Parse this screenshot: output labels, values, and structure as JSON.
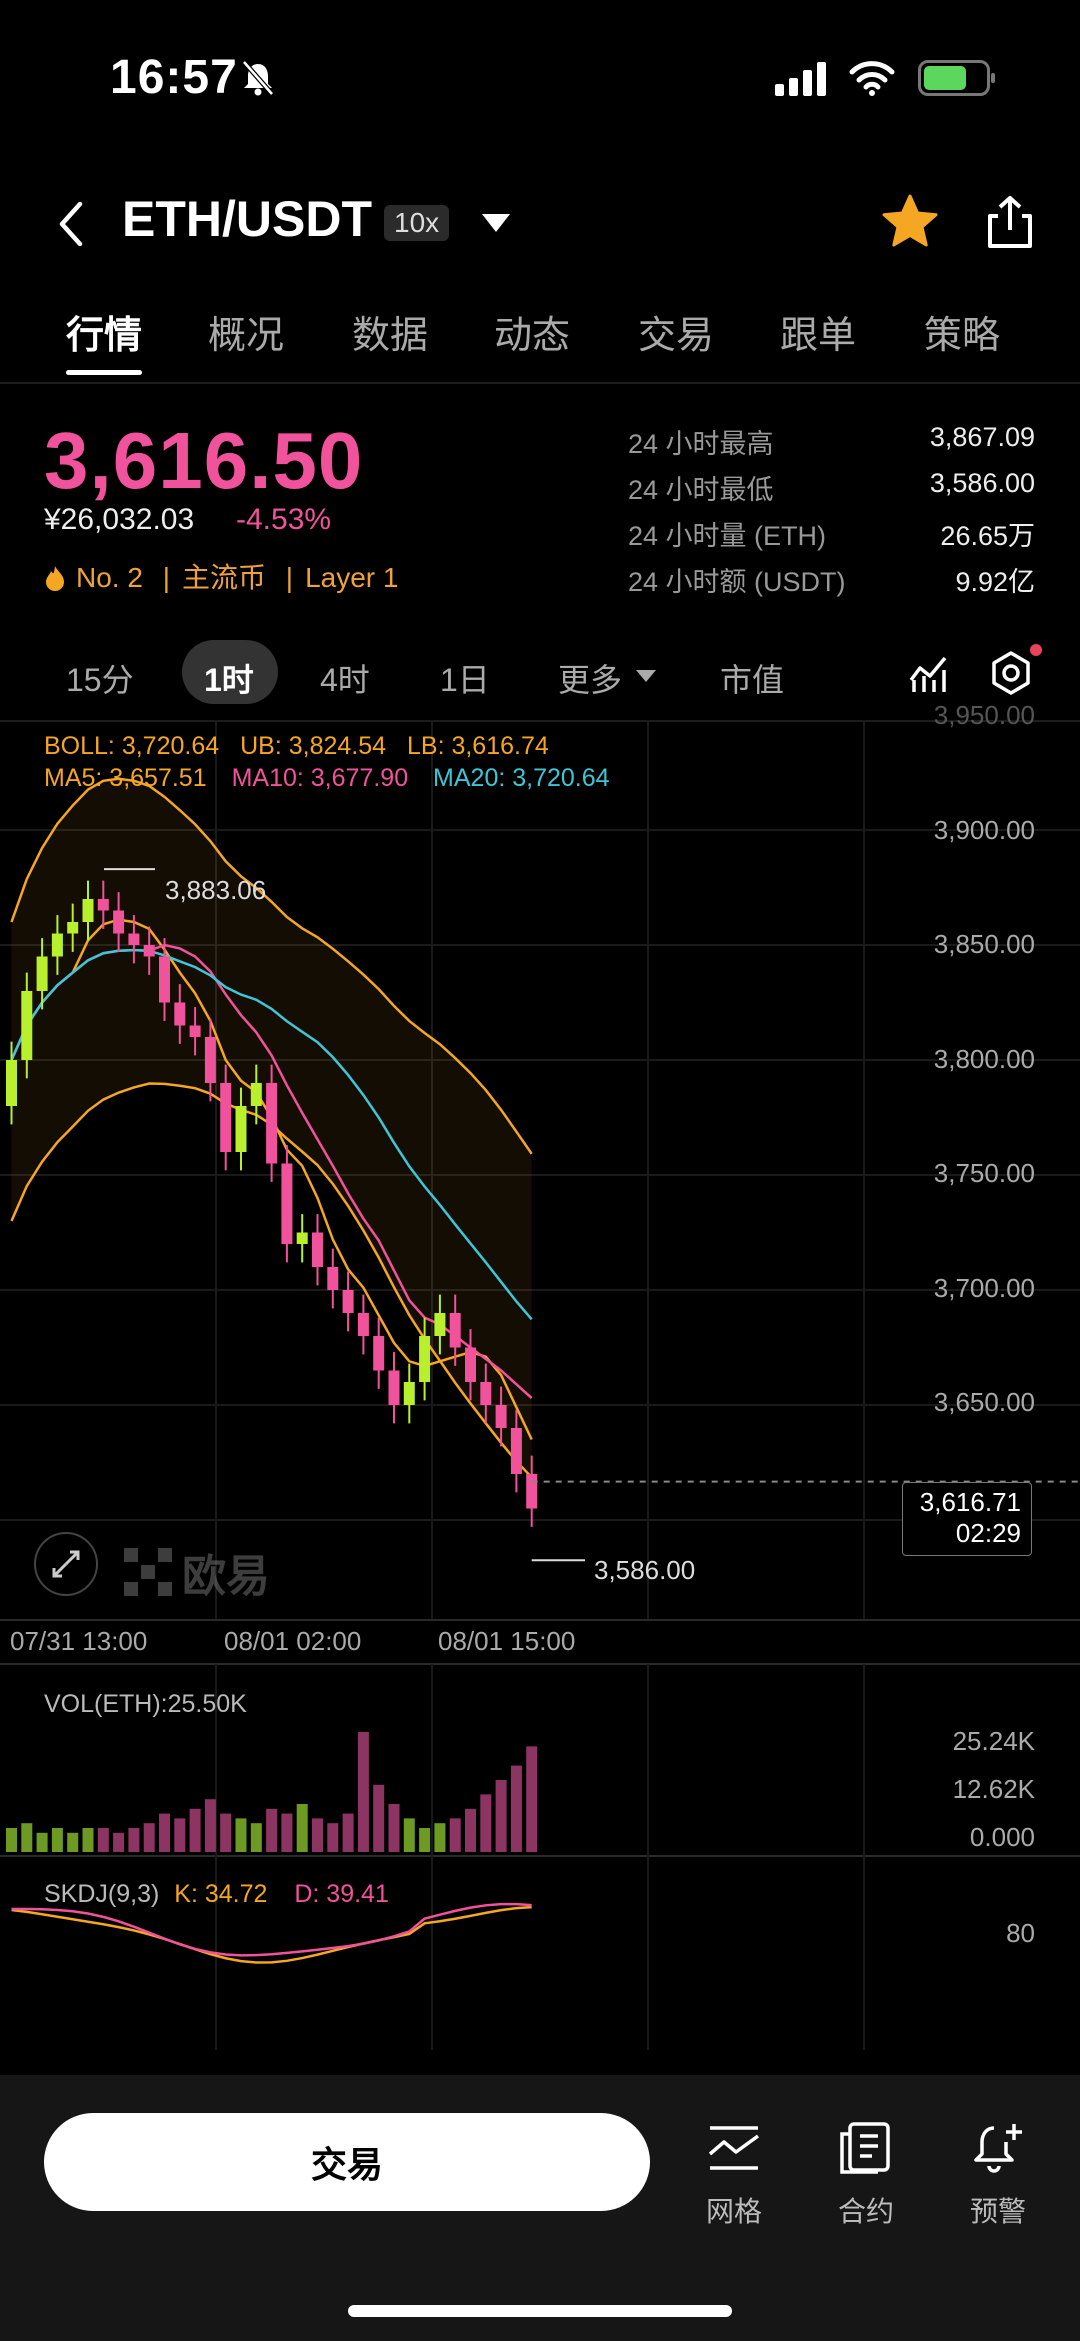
{
  "status": {
    "time": "16:57"
  },
  "header": {
    "pair": "ETH/USDT",
    "leverage": "10x"
  },
  "tabs": [
    "行情",
    "概况",
    "数据",
    "动态",
    "交易",
    "跟单",
    "策略"
  ],
  "price": {
    "last": "3,616.50",
    "cny": "¥26,032.03",
    "change": "-4.53%",
    "rank": "No. 2",
    "tag1": "主流币",
    "tag2": "Layer 1"
  },
  "stats": [
    {
      "label": "24 小时最高",
      "value": "3,867.09"
    },
    {
      "label": "24 小时最低",
      "value": "3,586.00"
    },
    {
      "label": "24 小时量 (ETH)",
      "value": "26.65万"
    },
    {
      "label": "24 小时额 (USDT)",
      "value": "9.92亿"
    }
  ],
  "intervals": {
    "i15": "15分",
    "i1h": "1时",
    "i4h": "4时",
    "i1d": "1日",
    "more": "更多",
    "mcap": "市值"
  },
  "indicators": {
    "boll": "BOLL: 3,720.64",
    "ub": "UB: 3,824.54",
    "lb": "LB: 3,616.74",
    "ma5": "MA5: 3,657.51",
    "ma10": "MA10: 3,677.90",
    "ma20": "MA20: 3,720.64",
    "vol": "VOL(ETH):25.50K",
    "skdj": "SKDJ(9,3)",
    "k": "K: 34.72",
    "d": "D: 39.41"
  },
  "chart": {
    "y_axis": [
      "3,900.00",
      "3,850.00",
      "3,800.00",
      "3,750.00",
      "3,700.00",
      "3,650.00"
    ],
    "y_top_partial": "3,950.00",
    "x_axis": [
      "07/31 13:00",
      "08/01 02:00",
      "08/01 15:00"
    ],
    "high_label": "3,883.06",
    "low_label": "3,586.00",
    "current_price": "3,616.71",
    "countdown": "02:29",
    "watermark": "欧易",
    "vol_axis": [
      "25.24K",
      "12.62K",
      "0.000"
    ],
    "skdj_axis": "80",
    "colors": {
      "up": "#b8f02e",
      "down": "#f0529b",
      "boll": "#f5a623",
      "ma10": "#f0529b",
      "ma20": "#3ec5d6"
    }
  },
  "chart_data": {
    "type": "candlestick",
    "ylim": [
      3586,
      3950
    ],
    "candles_close": [
      3800,
      3830,
      3845,
      3855,
      3860,
      3870,
      3865,
      3855,
      3850,
      3845,
      3825,
      3815,
      3810,
      3790,
      3760,
      3780,
      3790,
      3755,
      3720,
      3725,
      3710,
      3700,
      3690,
      3680,
      3665,
      3650,
      3660,
      3680,
      3690,
      3675,
      3660,
      3650,
      3640,
      3620,
      3605
    ],
    "volume": [
      5,
      6,
      4,
      5,
      4,
      5,
      5,
      4,
      5,
      6,
      8,
      7,
      9,
      11,
      8,
      7,
      6,
      9,
      8,
      10,
      7,
      6,
      8,
      25,
      14,
      10,
      7,
      5,
      6,
      7,
      9,
      12,
      15,
      18,
      22
    ]
  },
  "bottom": {
    "trade": "交易",
    "grid": "网格",
    "contract": "合约",
    "alert": "预警"
  }
}
